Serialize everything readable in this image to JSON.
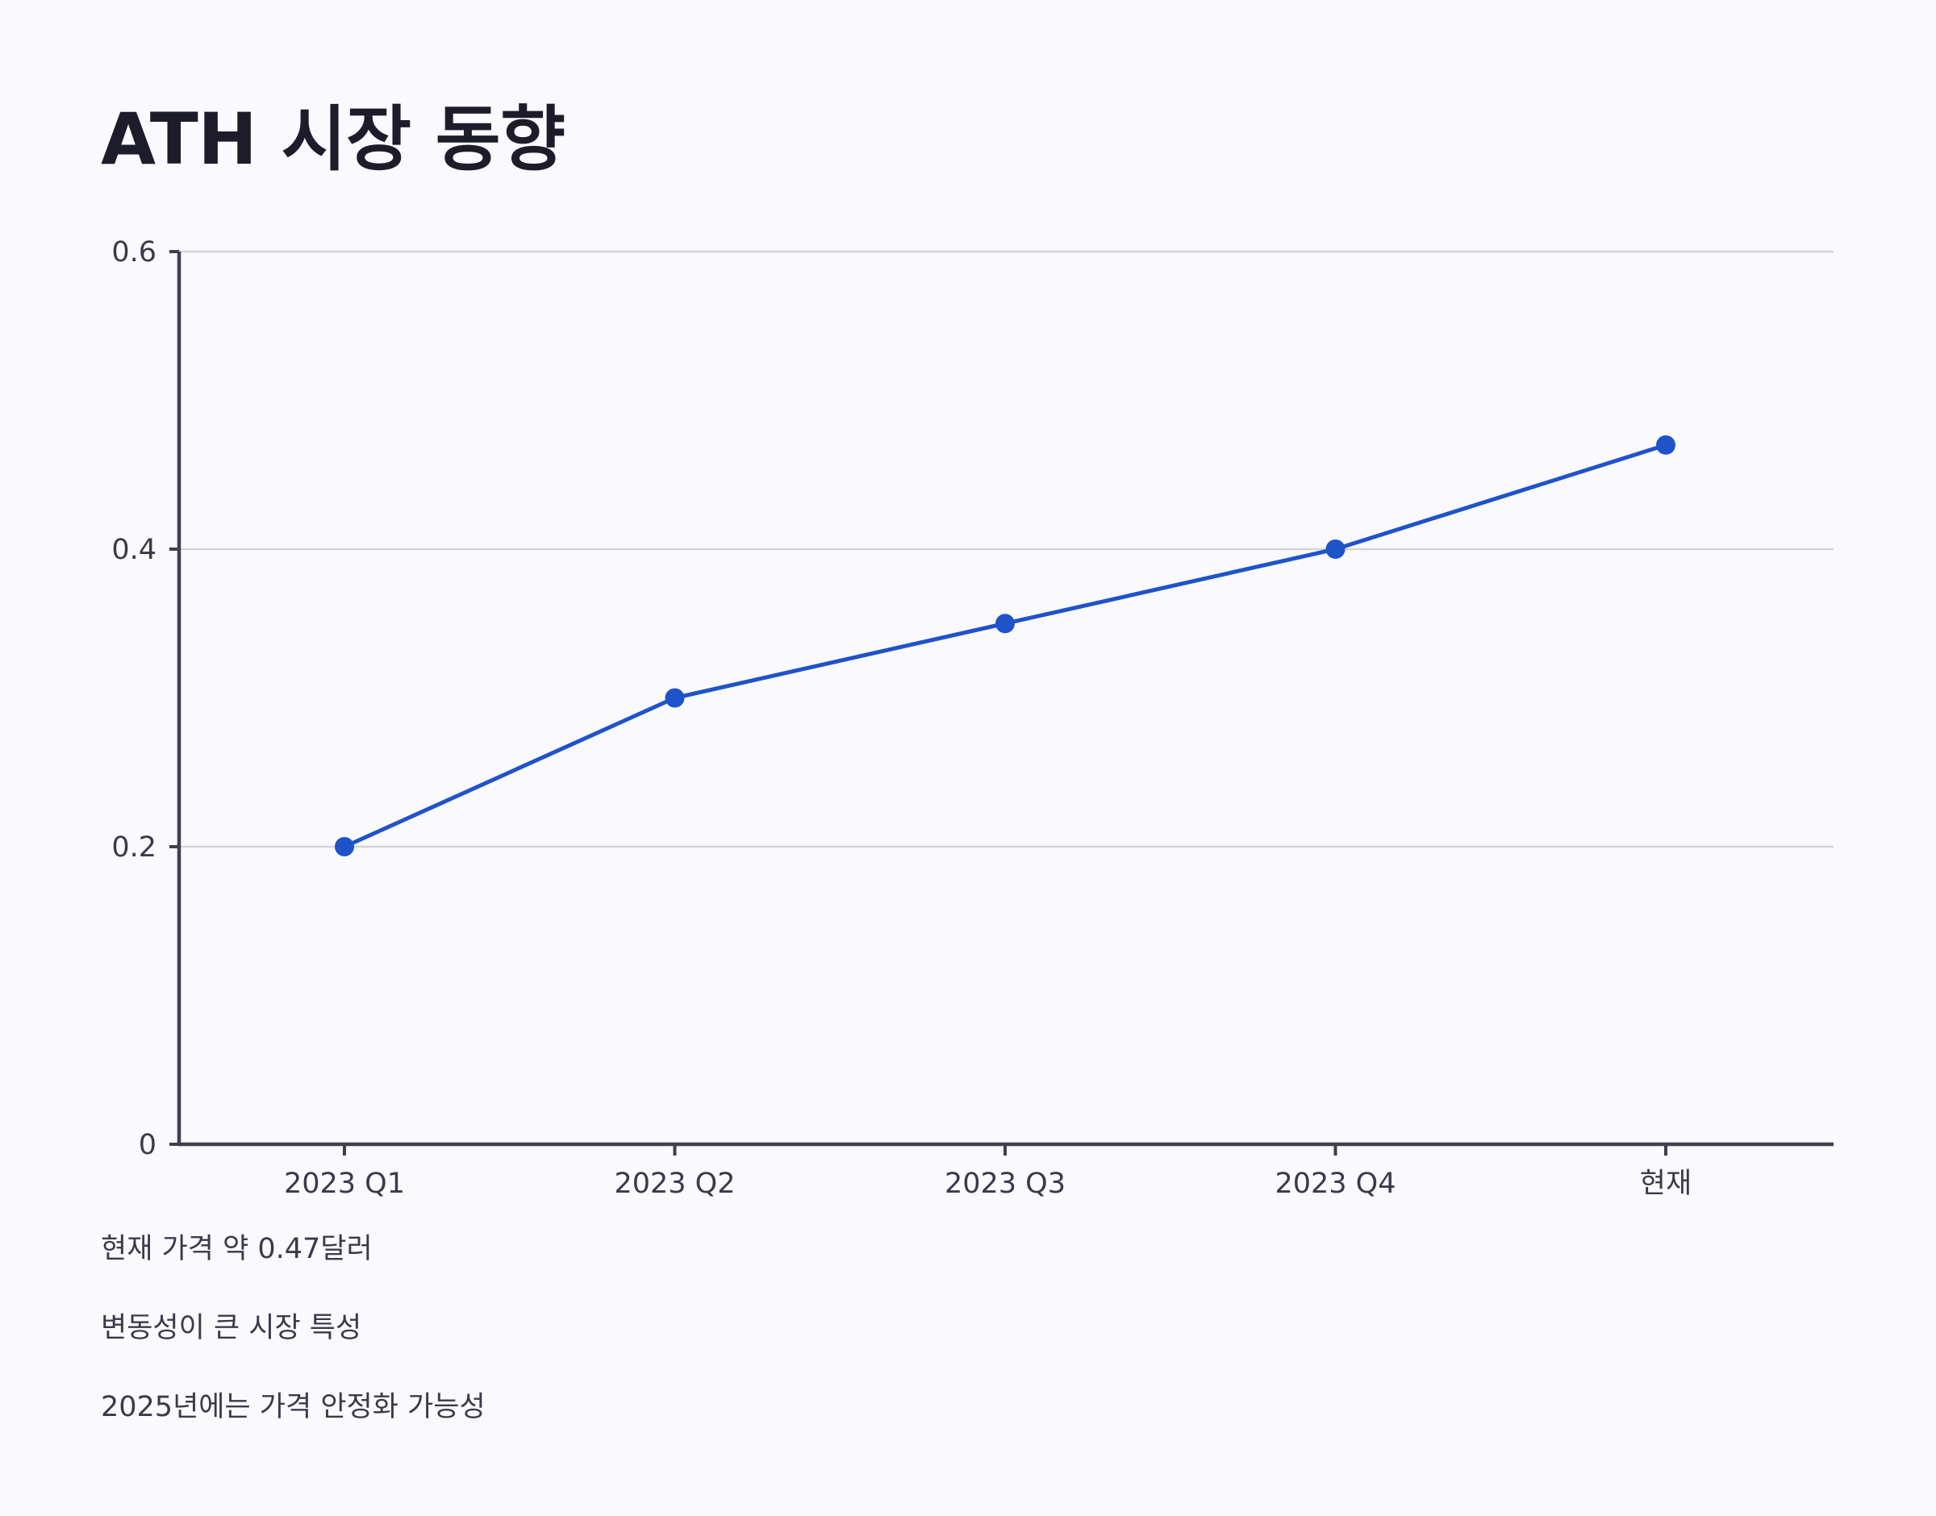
{
  "chart_data": {
    "type": "line",
    "title": "ATH 시장 동향",
    "categories": [
      "2023 Q1",
      "2023 Q2",
      "2023 Q3",
      "2023 Q4",
      "현재"
    ],
    "series": [
      {
        "values": [
          0.2,
          0.3,
          0.35,
          0.4,
          0.47
        ]
      }
    ],
    "ylim": [
      0,
      0.6
    ],
    "yticks": [
      {
        "value": 0,
        "label": "0"
      },
      {
        "value": 0.2,
        "label": "0.2"
      },
      {
        "value": 0.4,
        "label": "0.4"
      },
      {
        "value": 0.6,
        "label": "0.6"
      }
    ],
    "grid": true,
    "legend": "none",
    "colors": {
      "line": "#1f53c9",
      "point": "#1f53c9",
      "axis": "#403f4e",
      "grid": "#d4d4db"
    }
  },
  "notes": [
    "현재 가격 약 0.47달러",
    "변동성이 큰 시장 특성",
    "2025년에는 가격 안정화 가능성"
  ]
}
